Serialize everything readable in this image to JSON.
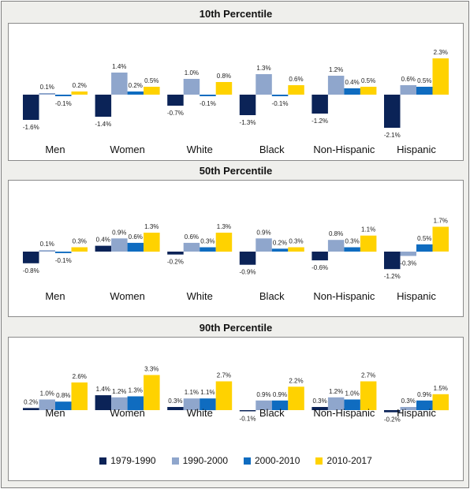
{
  "chart_data": [
    {
      "type": "bar",
      "title": "10th Percentile",
      "categories": [
        "Men",
        "Women",
        "White",
        "Black",
        "Non-Hispanic",
        "Hispanic"
      ],
      "series": [
        {
          "name": "1979-1990",
          "color": "#0b2357",
          "values": [
            -1.6,
            -1.4,
            -0.7,
            -1.3,
            -1.2,
            -2.1
          ]
        },
        {
          "name": "1990-2000",
          "color": "#8fa6cc",
          "values": [
            0.1,
            1.4,
            1.0,
            1.3,
            1.2,
            0.6
          ]
        },
        {
          "name": "2000-2010",
          "color": "#0f6cc0",
          "values": [
            -0.1,
            0.2,
            -0.1,
            -0.1,
            0.4,
            0.5
          ]
        },
        {
          "name": "2010-2017",
          "color": "#ffd200",
          "values": [
            0.2,
            0.5,
            0.8,
            0.6,
            0.5,
            2.3
          ]
        }
      ],
      "data_labels": [
        [
          "-1.6%",
          "0.1%",
          "-0.1%",
          "0.2%"
        ],
        [
          "-1.4%",
          "1.4%",
          "0.2%",
          "0.5%"
        ],
        [
          "-0.7%",
          "1.0%",
          "-0.1%",
          "0.8%"
        ],
        [
          "-1.3%",
          "1.3%",
          "-0.1%",
          "0.6%"
        ],
        [
          "-1.2%",
          "1.2%",
          "0.4%",
          "0.5%"
        ],
        [
          "-2.1%",
          "0.6%",
          "0.5%",
          "2.3%"
        ]
      ]
    },
    {
      "type": "bar",
      "title": "50th Percentile",
      "categories": [
        "Men",
        "Women",
        "White",
        "Black",
        "Non-Hispanic",
        "Hispanic"
      ],
      "series": [
        {
          "name": "1979-1990",
          "color": "#0b2357",
          "values": [
            -0.8,
            0.4,
            -0.2,
            -0.9,
            -0.6,
            -1.2
          ]
        },
        {
          "name": "1990-2000",
          "color": "#8fa6cc",
          "values": [
            0.1,
            0.9,
            0.6,
            0.9,
            0.8,
            -0.3
          ]
        },
        {
          "name": "2000-2010",
          "color": "#0f6cc0",
          "values": [
            -0.1,
            0.6,
            0.3,
            0.2,
            0.3,
            0.5
          ]
        },
        {
          "name": "2010-2017",
          "color": "#ffd200",
          "values": [
            0.3,
            1.3,
            1.3,
            0.3,
            1.1,
            1.7
          ]
        }
      ],
      "data_labels": [
        [
          "-0.8%",
          "0.1%",
          "-0.1%",
          "0.3%"
        ],
        [
          "0.4%",
          "0.9%",
          "0.6%",
          "1.3%"
        ],
        [
          "-0.2%",
          "0.6%",
          "0.3%",
          "1.3%"
        ],
        [
          "-0.9%",
          "0.9%",
          "0.2%",
          "0.3%"
        ],
        [
          "-0.6%",
          "0.8%",
          "0.3%",
          "1.1%"
        ],
        [
          "-1.2%",
          "-0.3%",
          "0.5%",
          "1.7%"
        ]
      ]
    },
    {
      "type": "bar",
      "title": "90th Percentile",
      "categories": [
        "Men",
        "Women",
        "White",
        "Black",
        "Non-Hispanic",
        "Hispanic"
      ],
      "series": [
        {
          "name": "1979-1990",
          "color": "#0b2357",
          "values": [
            0.2,
            1.4,
            0.3,
            -0.1,
            0.3,
            -0.2
          ]
        },
        {
          "name": "1990-2000",
          "color": "#8fa6cc",
          "values": [
            1.0,
            1.2,
            1.1,
            0.9,
            1.2,
            0.3
          ]
        },
        {
          "name": "2000-2010",
          "color": "#0f6cc0",
          "values": [
            0.8,
            1.3,
            1.1,
            0.9,
            1.0,
            0.9
          ]
        },
        {
          "name": "2010-2017",
          "color": "#ffd200",
          "values": [
            2.6,
            3.3,
            2.7,
            2.2,
            2.7,
            1.5
          ]
        }
      ],
      "data_labels": [
        [
          "0.2%",
          "1.0%",
          "0.8%",
          "2.6%"
        ],
        [
          "1.4%",
          "1.2%",
          "1.3%",
          "3.3%"
        ],
        [
          "0.3%",
          "1.1%",
          "1.1%",
          "2.7%"
        ],
        [
          "-0.1%",
          "0.9%",
          "0.9%",
          "2.2%"
        ],
        [
          "0.3%",
          "1.2%",
          "1.0%",
          "2.7%"
        ],
        [
          "-0.2%",
          "0.3%",
          "0.9%",
          "1.5%"
        ]
      ]
    }
  ],
  "legend": [
    {
      "name": "1979-1990",
      "color": "#0b2357"
    },
    {
      "name": "1990-2000",
      "color": "#8fa6cc"
    },
    {
      "name": "2000-2010",
      "color": "#0f6cc0"
    },
    {
      "name": "2010-2017",
      "color": "#ffd200"
    }
  ]
}
